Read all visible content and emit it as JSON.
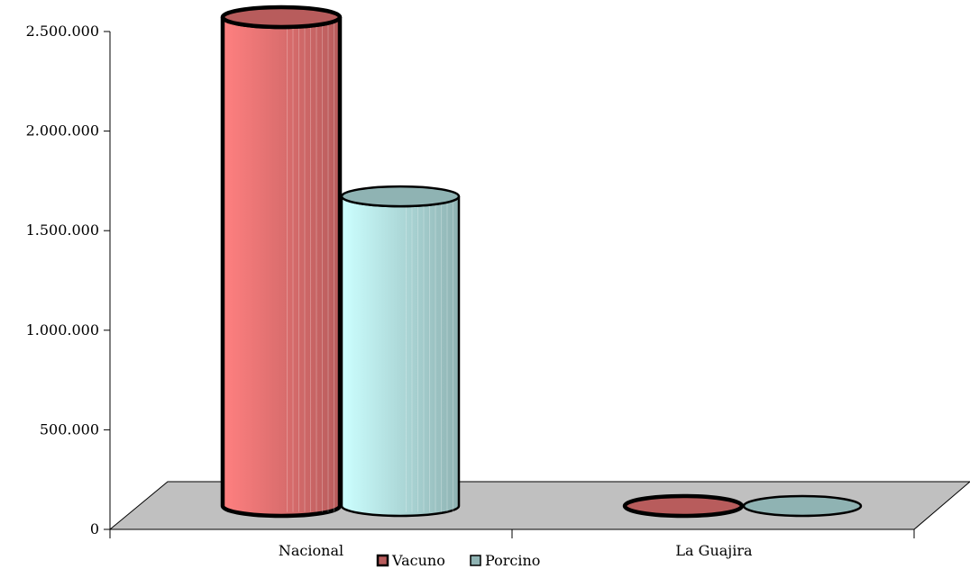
{
  "chart_data": {
    "type": "bar",
    "style": "3d-cylinder",
    "categories": [
      "Nacional",
      "La Guajira"
    ],
    "series": [
      {
        "name": "Vacuno",
        "values": [
          2500000,
          25000
        ],
        "color": "#ff8080",
        "color_dark": "#b85c5c"
      },
      {
        "name": "Porcino",
        "values": [
          1600000,
          20000
        ],
        "color": "#ccffff",
        "color_dark": "#8fb3b3"
      }
    ],
    "yticks": [
      "0",
      "500.000",
      "1.000.000",
      "1.500.000",
      "2.000.000",
      "2.500.000"
    ],
    "ylim": [
      0,
      2500000
    ],
    "legend_position": "bottom",
    "floor_color": "#c0c0c0"
  }
}
